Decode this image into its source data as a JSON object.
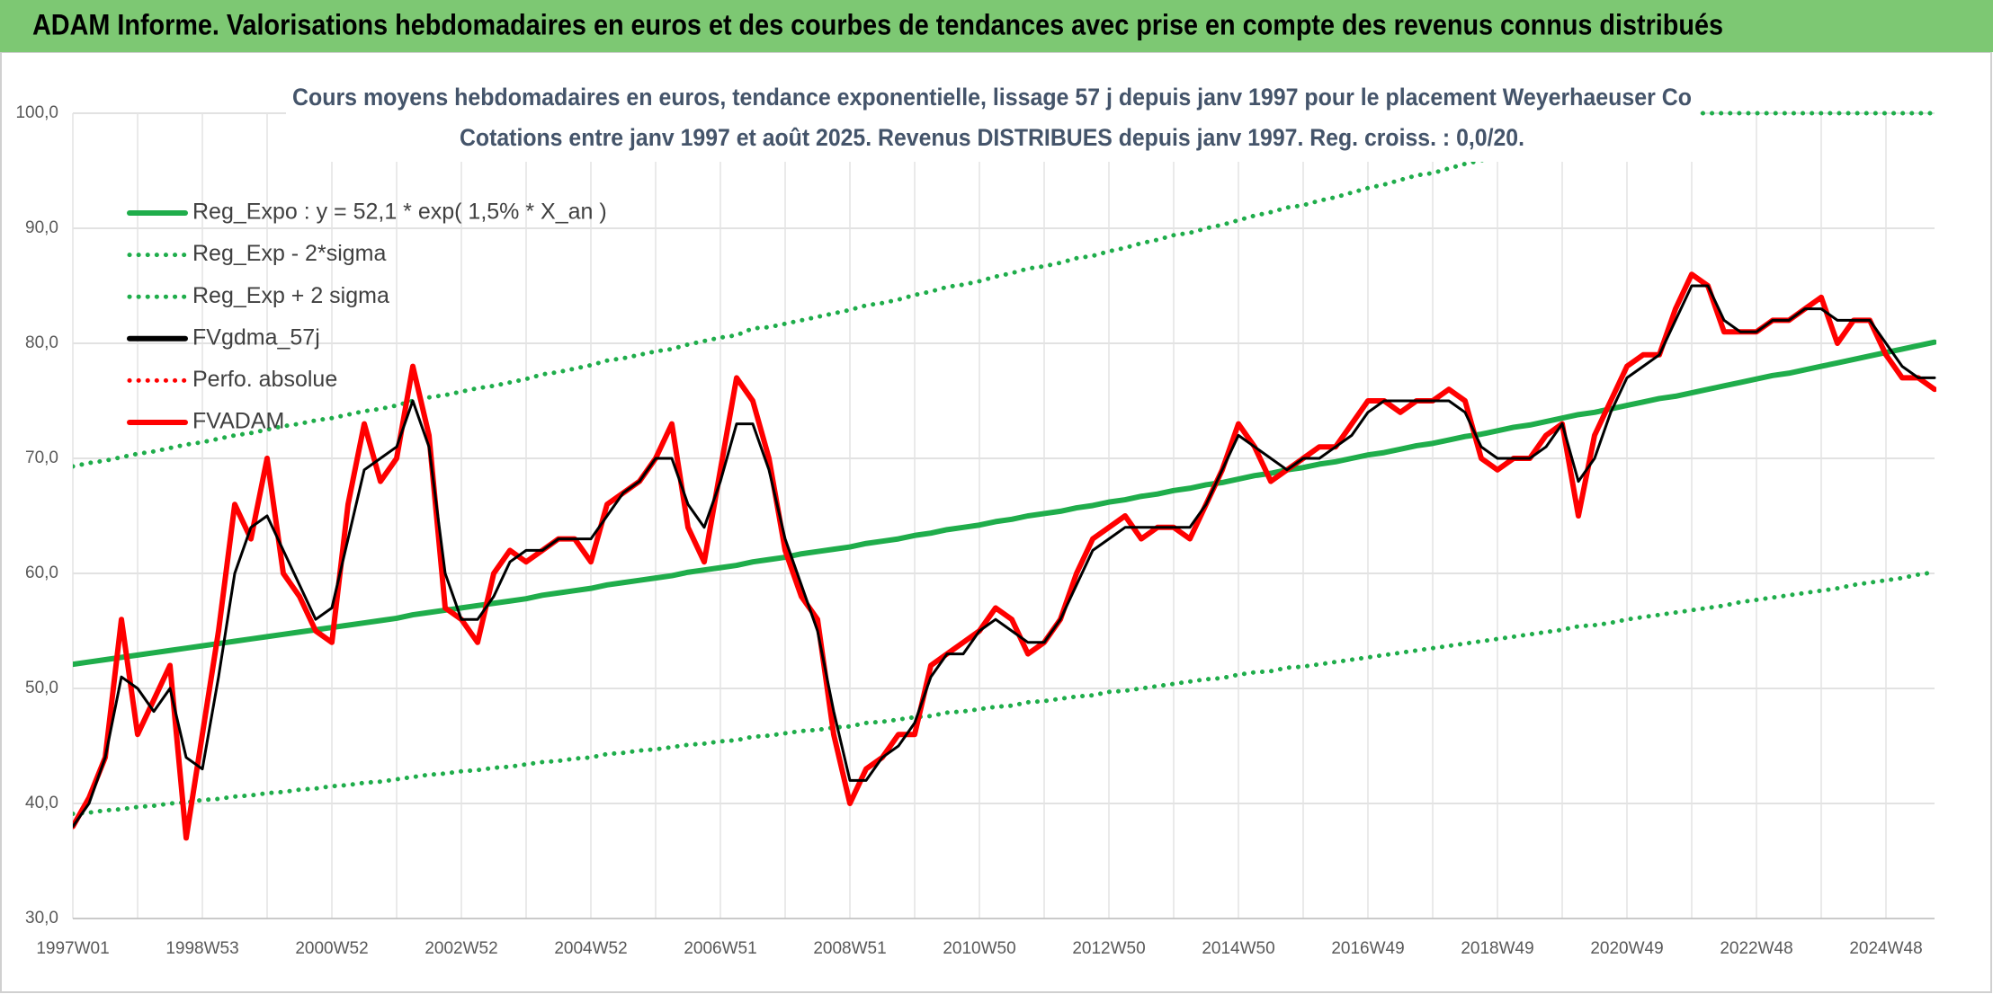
{
  "header": {
    "title": "ADAM Informe. Valorisations hebdomadaires en euros et des courbes de tendances avec prise en compte des revenus connus distribués"
  },
  "chart_data": {
    "type": "line",
    "title": "Cours moyens hebdomadaires en euros, tendance exponentielle, lissage 57 j depuis janv 1997 pour le placement Weyerhaeuser Co",
    "subtitle": "Cotations entre janv 1997 et août 2025. Revenus DISTRIBUES depuis janv 1997. Reg. croiss. : 0,0/20.",
    "categories": [
      "1997W01",
      null,
      null,
      null,
      null,
      null,
      null,
      null,
      "1998W53",
      null,
      null,
      null,
      null,
      null,
      null,
      null,
      "2000W52",
      null,
      null,
      null,
      null,
      null,
      null,
      null,
      "2002W52",
      null,
      null,
      null,
      null,
      null,
      null,
      null,
      "2004W52",
      null,
      null,
      null,
      null,
      null,
      null,
      null,
      "2006W51",
      null,
      null,
      null,
      null,
      null,
      null,
      null,
      "2008W51",
      null,
      null,
      null,
      null,
      null,
      null,
      null,
      "2010W50",
      null,
      null,
      null,
      null,
      null,
      null,
      null,
      "2012W50",
      null,
      null,
      null,
      null,
      null,
      null,
      null,
      "2014W50",
      null,
      null,
      null,
      null,
      null,
      null,
      null,
      "2016W49",
      null,
      null,
      null,
      null,
      null,
      null,
      null,
      "2018W49",
      null,
      null,
      null,
      null,
      null,
      null,
      null,
      "2020W49",
      null,
      null,
      null,
      null,
      null,
      null,
      null,
      "2022W48",
      null,
      null,
      null,
      null,
      null,
      null,
      null,
      "2024W48",
      null,
      null,
      null
    ],
    "ylim": [
      30,
      100
    ],
    "yticks": [
      {
        "value": 30,
        "label": "30,0"
      },
      {
        "value": 40,
        "label": "40,0"
      },
      {
        "value": 50,
        "label": "50,0"
      },
      {
        "value": 60,
        "label": "60,0"
      },
      {
        "value": 70,
        "label": "70,0"
      },
      {
        "value": 80,
        "label": "80,0"
      },
      {
        "value": 90,
        "label": "90,0"
      },
      {
        "value": 100,
        "label": "100,0"
      }
    ],
    "grid": true,
    "legend": "upper left",
    "series": [
      {
        "name": "Reg_Expo : y = 52,1 * exp( 1,5% *  X_an )",
        "color": "#1fad4b",
        "style": "solid",
        "values": [
          52.1,
          52.3,
          52.5,
          52.7,
          52.9,
          53.1,
          53.3,
          53.5,
          53.7,
          53.9,
          54.1,
          54.3,
          54.5,
          54.7,
          54.9,
          55.1,
          55.3,
          55.5,
          55.7,
          55.9,
          56.1,
          56.4,
          56.6,
          56.8,
          57.0,
          57.2,
          57.4,
          57.6,
          57.8,
          58.1,
          58.3,
          58.5,
          58.7,
          59.0,
          59.2,
          59.4,
          59.6,
          59.8,
          60.1,
          60.3,
          60.5,
          60.7,
          61.0,
          61.2,
          61.4,
          61.7,
          61.9,
          62.1,
          62.3,
          62.6,
          62.8,
          63.0,
          63.3,
          63.5,
          63.8,
          64.0,
          64.2,
          64.5,
          64.7,
          65.0,
          65.2,
          65.4,
          65.7,
          65.9,
          66.2,
          66.4,
          66.7,
          66.9,
          67.2,
          67.4,
          67.7,
          67.9,
          68.2,
          68.5,
          68.7,
          69.0,
          69.2,
          69.5,
          69.7,
          70.0,
          70.3,
          70.5,
          70.8,
          71.1,
          71.3,
          71.6,
          71.9,
          72.1,
          72.4,
          72.7,
          72.9,
          73.2,
          73.5,
          73.8,
          74.0,
          74.3,
          74.6,
          74.9,
          75.2,
          75.4,
          75.7,
          76.0,
          76.3,
          76.6,
          76.9,
          77.2,
          77.4,
          77.7,
          78.0,
          78.3,
          78.6,
          78.9,
          79.2,
          79.5,
          79.8,
          80.1
        ]
      },
      {
        "name": "Reg_Exp - 2*sigma",
        "color": "#1fad4b",
        "style": "dotted",
        "values": [
          39.1,
          39.2,
          39.4,
          39.5,
          39.7,
          39.8,
          40.0,
          40.1,
          40.3,
          40.4,
          40.6,
          40.7,
          40.9,
          41.0,
          41.2,
          41.3,
          41.5,
          41.6,
          41.8,
          41.9,
          42.1,
          42.3,
          42.5,
          42.6,
          42.8,
          42.9,
          43.1,
          43.2,
          43.4,
          43.6,
          43.7,
          43.9,
          44.0,
          44.3,
          44.4,
          44.6,
          44.7,
          44.9,
          45.1,
          45.2,
          45.4,
          45.5,
          45.8,
          45.9,
          46.1,
          46.3,
          46.4,
          46.6,
          46.7,
          47.0,
          47.1,
          47.3,
          47.5,
          47.6,
          47.9,
          48.0,
          48.2,
          48.4,
          48.5,
          48.8,
          48.9,
          49.1,
          49.3,
          49.4,
          49.7,
          49.8,
          50.0,
          50.2,
          50.4,
          50.6,
          50.8,
          50.9,
          51.2,
          51.4,
          51.5,
          51.8,
          51.9,
          52.1,
          52.3,
          52.5,
          52.7,
          52.9,
          53.1,
          53.3,
          53.5,
          53.7,
          53.9,
          54.1,
          54.3,
          54.5,
          54.7,
          54.9,
          55.1,
          55.4,
          55.5,
          55.7,
          56.0,
          56.2,
          56.4,
          56.6,
          56.8,
          57.0,
          57.2,
          57.5,
          57.7,
          57.9,
          58.1,
          58.3,
          58.5,
          58.7,
          59.0,
          59.2,
          59.4,
          59.6,
          59.9,
          60.1
        ]
      },
      {
        "name": "Reg_Exp + 2 sigma",
        "color": "#1fad4b",
        "style": "dotted",
        "values": [
          69.3,
          69.6,
          69.8,
          70.1,
          70.4,
          70.6,
          70.9,
          71.2,
          71.4,
          71.7,
          72.0,
          72.2,
          72.5,
          72.8,
          73.0,
          73.3,
          73.5,
          73.8,
          74.1,
          74.3,
          74.6,
          75.0,
          75.3,
          75.5,
          75.8,
          76.1,
          76.3,
          76.6,
          76.9,
          77.3,
          77.5,
          77.8,
          78.1,
          78.5,
          78.7,
          79.0,
          79.3,
          79.5,
          79.9,
          80.2,
          80.5,
          80.7,
          81.3,
          81.4,
          81.7,
          82.0,
          82.3,
          82.6,
          82.9,
          83.3,
          83.5,
          83.8,
          84.2,
          84.5,
          84.9,
          85.1,
          85.4,
          85.8,
          86.1,
          86.5,
          86.7,
          87.0,
          87.4,
          87.6,
          88.0,
          88.3,
          88.7,
          89.0,
          89.4,
          89.6,
          90.0,
          90.3,
          90.7,
          91.1,
          91.4,
          91.8,
          92.0,
          92.4,
          92.7,
          93.1,
          93.5,
          93.8,
          94.2,
          94.6,
          94.8,
          95.2,
          95.6,
          95.9,
          96.3,
          96.7,
          97.0,
          97.4,
          97.8,
          98.2,
          98.4,
          98.8,
          99.2,
          99.6,
          100,
          100,
          100,
          100,
          100,
          100,
          100,
          100,
          100,
          100,
          100,
          100,
          100,
          100,
          100,
          100,
          100,
          100
        ]
      },
      {
        "name": "FVgdma_57j",
        "color": "#000000",
        "style": "solid",
        "values": [
          38,
          40,
          44,
          51,
          50,
          48,
          50,
          44,
          43,
          51,
          60,
          64,
          65,
          62,
          59,
          56,
          57,
          63,
          69,
          70,
          71,
          75,
          71,
          60,
          56,
          56,
          58,
          61,
          62,
          62,
          63,
          63,
          63,
          65,
          67,
          68,
          70,
          70,
          66,
          64,
          68,
          73,
          73,
          69,
          63,
          59,
          55,
          48,
          42,
          42,
          44,
          45,
          47,
          51,
          53,
          53,
          55,
          56,
          55,
          54,
          54,
          56,
          59,
          62,
          63,
          64,
          64,
          64,
          64,
          64,
          66,
          69,
          72,
          71,
          70,
          69,
          70,
          70,
          71,
          72,
          74,
          75,
          75,
          75,
          75,
          75,
          74,
          71,
          70,
          70,
          70,
          71,
          73,
          68,
          70,
          74,
          77,
          78,
          79,
          82,
          85,
          85,
          82,
          81,
          81,
          82,
          82,
          83,
          83,
          82,
          82,
          82,
          80,
          78,
          77,
          77
        ]
      },
      {
        "name": "Perfo. absolue",
        "color": "#ff0000",
        "style": "dotted",
        "values": [
          null,
          null,
          null,
          null,
          null,
          null,
          null,
          null,
          null,
          null,
          null,
          null,
          null,
          null,
          null,
          null,
          null,
          null,
          null,
          null,
          null,
          null,
          null,
          null,
          null,
          null,
          null,
          null,
          null,
          null,
          null,
          null,
          null,
          null,
          null,
          null,
          null,
          null,
          null,
          null,
          null,
          null,
          null,
          null,
          null,
          null,
          null,
          null,
          null,
          null,
          null,
          null,
          null,
          null,
          null,
          null,
          null,
          null,
          null,
          null,
          null,
          null,
          null,
          null,
          null,
          null,
          null,
          null,
          null,
          null,
          null,
          null,
          null,
          null,
          null,
          null,
          null,
          null,
          null,
          null,
          null,
          null,
          null,
          null,
          null,
          null,
          null,
          null,
          null,
          null,
          null,
          null,
          null,
          null,
          null,
          null,
          null,
          null,
          null,
          null,
          null,
          null,
          null,
          null,
          null,
          null,
          null,
          null,
          null,
          null,
          null,
          null,
          null,
          null,
          null,
          null
        ]
      },
      {
        "name": "FVADAM",
        "color": "#ff0000",
        "style": "solid",
        "values": [
          38,
          40.5,
          44,
          56,
          46,
          49,
          52,
          37,
          46,
          55,
          66,
          63,
          70,
          60,
          58,
          55,
          54,
          66,
          73,
          68,
          70,
          78,
          72,
          57,
          56,
          54,
          60,
          62,
          61,
          62,
          63,
          63,
          61,
          66,
          67,
          68,
          70,
          73,
          64,
          61,
          69,
          77,
          75,
          70,
          62,
          58,
          56,
          46,
          40,
          43,
          44,
          46,
          46,
          52,
          53,
          54,
          55,
          57,
          56,
          53,
          54,
          56,
          60,
          63,
          64,
          65,
          63,
          64,
          64,
          63,
          66,
          69,
          73,
          71,
          68,
          69,
          70,
          71,
          71,
          73,
          75,
          75,
          74,
          75,
          75,
          76,
          75,
          70,
          69,
          70,
          70,
          72,
          73,
          65,
          72,
          75,
          78,
          79,
          79,
          83,
          86,
          85,
          81,
          81,
          81,
          82,
          82,
          83,
          84,
          80,
          82,
          82,
          79,
          77,
          77,
          76
        ]
      }
    ]
  }
}
